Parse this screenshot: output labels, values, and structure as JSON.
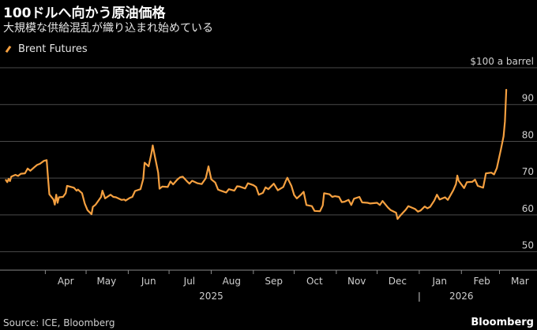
{
  "title": "100ドルへ向かう原油価格",
  "subtitle": "大規模な供給混乱が織り込まれ始めている",
  "source": "Source: ICE, Bloomberg",
  "brand": "Bloomberg",
  "colors": {
    "background": "#000000",
    "series": "#f5a040",
    "grid": "#4a4a4a",
    "text": "#cfcfcf"
  },
  "chart_data": {
    "type": "line",
    "series": [
      {
        "name": "Brent Futures",
        "points": [
          [
            "2025-03-03",
            69.5
          ],
          [
            "2025-03-04",
            68.9
          ],
          [
            "2025-03-05",
            69.8
          ],
          [
            "2025-03-06",
            69.2
          ],
          [
            "2025-03-07",
            70.4
          ],
          [
            "2025-03-10",
            70.9
          ],
          [
            "2025-03-12",
            70.6
          ],
          [
            "2025-03-14",
            71.2
          ],
          [
            "2025-03-17",
            71.3
          ],
          [
            "2025-03-19",
            72.6
          ],
          [
            "2025-03-21",
            72.0
          ],
          [
            "2025-03-24",
            73.0
          ],
          [
            "2025-03-26",
            73.6
          ],
          [
            "2025-03-28",
            73.9
          ],
          [
            "2025-03-31",
            74.7
          ],
          [
            "2025-04-02",
            74.9
          ],
          [
            "2025-04-03",
            70.1
          ],
          [
            "2025-04-04",
            65.6
          ],
          [
            "2025-04-07",
            64.2
          ],
          [
            "2025-04-08",
            62.8
          ],
          [
            "2025-04-09",
            65.5
          ],
          [
            "2025-04-10",
            63.3
          ],
          [
            "2025-04-11",
            64.8
          ],
          [
            "2025-04-14",
            64.9
          ],
          [
            "2025-04-16",
            65.9
          ],
          [
            "2025-04-17",
            67.9
          ],
          [
            "2025-04-22",
            67.4
          ],
          [
            "2025-04-24",
            66.6
          ],
          [
            "2025-04-25",
            66.9
          ],
          [
            "2025-04-28",
            65.9
          ],
          [
            "2025-04-30",
            63.1
          ],
          [
            "2025-05-02",
            61.3
          ],
          [
            "2025-05-05",
            60.2
          ],
          [
            "2025-05-06",
            62.2
          ],
          [
            "2025-05-08",
            62.8
          ],
          [
            "2025-05-12",
            64.9
          ],
          [
            "2025-05-13",
            66.6
          ],
          [
            "2025-05-15",
            64.5
          ],
          [
            "2025-05-19",
            65.5
          ],
          [
            "2025-05-21",
            64.9
          ],
          [
            "2025-05-23",
            64.8
          ],
          [
            "2025-05-27",
            64.1
          ],
          [
            "2025-05-29",
            64.2
          ],
          [
            "2025-05-30",
            63.9
          ],
          [
            "2025-06-02",
            64.6
          ],
          [
            "2025-06-04",
            64.9
          ],
          [
            "2025-06-06",
            66.5
          ],
          [
            "2025-06-10",
            67.0
          ],
          [
            "2025-06-12",
            69.8
          ],
          [
            "2025-06-13",
            74.2
          ],
          [
            "2025-06-16",
            73.2
          ],
          [
            "2025-06-18",
            76.7
          ],
          [
            "2025-06-19",
            78.9
          ],
          [
            "2025-06-20",
            77.0
          ],
          [
            "2025-06-23",
            71.5
          ],
          [
            "2025-06-24",
            67.1
          ],
          [
            "2025-06-26",
            67.7
          ],
          [
            "2025-06-30",
            67.6
          ],
          [
            "2025-07-02",
            69.1
          ],
          [
            "2025-07-04",
            68.3
          ],
          [
            "2025-07-07",
            69.6
          ],
          [
            "2025-07-09",
            70.2
          ],
          [
            "2025-07-11",
            70.4
          ],
          [
            "2025-07-14",
            69.2
          ],
          [
            "2025-07-16",
            68.5
          ],
          [
            "2025-07-18",
            69.3
          ],
          [
            "2025-07-22",
            68.6
          ],
          [
            "2025-07-25",
            68.4
          ],
          [
            "2025-07-28",
            70.0
          ],
          [
            "2025-07-30",
            73.2
          ],
          [
            "2025-08-01",
            69.7
          ],
          [
            "2025-08-04",
            68.8
          ],
          [
            "2025-08-06",
            66.9
          ],
          [
            "2025-08-08",
            66.6
          ],
          [
            "2025-08-12",
            66.1
          ],
          [
            "2025-08-14",
            67.0
          ],
          [
            "2025-08-18",
            66.6
          ],
          [
            "2025-08-20",
            67.8
          ],
          [
            "2025-08-22",
            67.7
          ],
          [
            "2025-08-26",
            67.2
          ],
          [
            "2025-08-28",
            68.6
          ],
          [
            "2025-09-01",
            68.1
          ],
          [
            "2025-09-03",
            67.6
          ],
          [
            "2025-09-05",
            65.5
          ],
          [
            "2025-09-08",
            66.0
          ],
          [
            "2025-09-10",
            67.5
          ],
          [
            "2025-09-12",
            67.0
          ],
          [
            "2025-09-16",
            68.5
          ],
          [
            "2025-09-19",
            66.7
          ],
          [
            "2025-09-23",
            67.6
          ],
          [
            "2025-09-25",
            69.4
          ],
          [
            "2025-09-26",
            70.1
          ],
          [
            "2025-09-29",
            67.9
          ],
          [
            "2025-10-01",
            65.4
          ],
          [
            "2025-10-03",
            64.5
          ],
          [
            "2025-10-06",
            65.5
          ],
          [
            "2025-10-08",
            66.3
          ],
          [
            "2025-10-10",
            62.7
          ],
          [
            "2025-10-14",
            62.4
          ],
          [
            "2025-10-16",
            61.1
          ],
          [
            "2025-10-20",
            61.0
          ],
          [
            "2025-10-22",
            62.6
          ],
          [
            "2025-10-23",
            65.9
          ],
          [
            "2025-10-27",
            65.6
          ],
          [
            "2025-10-29",
            64.9
          ],
          [
            "2025-10-31",
            65.1
          ],
          [
            "2025-11-03",
            64.9
          ],
          [
            "2025-11-05",
            63.5
          ],
          [
            "2025-11-07",
            63.6
          ],
          [
            "2025-11-10",
            64.1
          ],
          [
            "2025-11-12",
            62.7
          ],
          [
            "2025-11-14",
            64.4
          ],
          [
            "2025-11-18",
            64.9
          ],
          [
            "2025-11-20",
            63.4
          ],
          [
            "2025-11-24",
            63.3
          ],
          [
            "2025-11-26",
            63.1
          ],
          [
            "2025-11-28",
            63.2
          ],
          [
            "2025-12-01",
            63.3
          ],
          [
            "2025-12-03",
            62.7
          ],
          [
            "2025-12-05",
            63.8
          ],
          [
            "2025-12-09",
            62.0
          ],
          [
            "2025-12-11",
            61.3
          ],
          [
            "2025-12-15",
            60.6
          ],
          [
            "2025-12-16",
            58.9
          ],
          [
            "2025-12-18",
            59.8
          ],
          [
            "2025-12-22",
            61.4
          ],
          [
            "2025-12-24",
            62.4
          ],
          [
            "2025-12-29",
            61.6
          ],
          [
            "2025-12-31",
            60.9
          ],
          [
            "2026-01-02",
            61.2
          ],
          [
            "2026-01-05",
            62.3
          ],
          [
            "2026-01-07",
            61.8
          ],
          [
            "2026-01-09",
            62.2
          ],
          [
            "2026-01-12",
            63.9
          ],
          [
            "2026-01-14",
            65.5
          ],
          [
            "2026-01-16",
            64.2
          ],
          [
            "2026-01-20",
            64.8
          ],
          [
            "2026-01-22",
            64.1
          ],
          [
            "2026-01-26",
            66.7
          ],
          [
            "2026-01-28",
            68.4
          ],
          [
            "2026-01-29",
            70.7
          ],
          [
            "2026-01-30",
            69.3
          ],
          [
            "2026-02-03",
            67.3
          ],
          [
            "2026-02-05",
            68.9
          ],
          [
            "2026-02-09",
            69.0
          ],
          [
            "2026-02-11",
            69.6
          ],
          [
            "2026-02-13",
            67.9
          ],
          [
            "2026-02-17",
            67.4
          ],
          [
            "2026-02-19",
            71.3
          ],
          [
            "2026-02-23",
            71.5
          ],
          [
            "2026-02-25",
            71.0
          ],
          [
            "2026-02-27",
            72.7
          ],
          [
            "2026-03-02",
            77.7
          ],
          [
            "2026-03-04",
            81.4
          ],
          [
            "2026-03-05",
            85.4
          ],
          [
            "2026-03-06",
            94.0
          ]
        ]
      }
    ],
    "xlim": [
      "2025-03-01",
      "2026-03-10"
    ],
    "ylim": [
      45,
      100
    ],
    "x_ticks": [
      {
        "date": "2025-04-01",
        "label": "Apr"
      },
      {
        "date": "2025-05-01",
        "label": "May"
      },
      {
        "date": "2025-06-01",
        "label": "Jun"
      },
      {
        "date": "2025-07-01",
        "label": "Jul"
      },
      {
        "date": "2025-08-01",
        "label": "Aug"
      },
      {
        "date": "2025-09-01",
        "label": "Sep"
      },
      {
        "date": "2025-10-01",
        "label": "Oct"
      },
      {
        "date": "2025-11-01",
        "label": "Nov"
      },
      {
        "date": "2025-12-01",
        "label": "Dec"
      },
      {
        "date": "2026-01-01",
        "label": "Jan"
      },
      {
        "date": "2026-02-01",
        "label": "Feb"
      },
      {
        "date": "2026-03-01",
        "label": "Mar"
      }
    ],
    "year_labels": [
      {
        "date": "2025-08-01",
        "label": "2025"
      },
      {
        "date": "2026-02-01",
        "label": "2026"
      }
    ],
    "year_divider": "2026-01-01",
    "y_ticks": [
      50,
      60,
      70,
      80,
      90,
      100
    ],
    "y_tick_labels": [
      "50",
      "60",
      "70",
      "80",
      "90",
      "$100 a barrel"
    ],
    "grid": true,
    "legend": "top-left"
  }
}
